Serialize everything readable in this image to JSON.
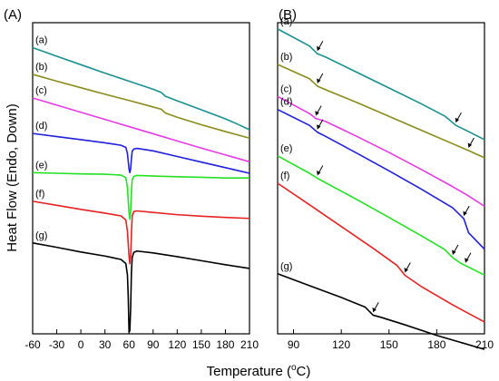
{
  "chart_data": [
    {
      "panel_label": "(A)",
      "type": "line",
      "xlim": [
        -60,
        210
      ],
      "ylim": [
        0,
        100
      ],
      "xticks": [
        -60,
        -30,
        0,
        30,
        60,
        90,
        120,
        150,
        180,
        210
      ],
      "ylabel": "Heat Flow (Endo, Down)",
      "yticks_shown": false,
      "series": [
        {
          "label": "(a)",
          "color": "#1a8f8f",
          "x": [
            -60,
            -30,
            0,
            30,
            60,
            90,
            100,
            105,
            120,
            150,
            180,
            195,
            210
          ],
          "y": [
            92.0,
            89.2,
            86.5,
            83.8,
            81.2,
            78.6,
            77.6,
            76.4,
            74.9,
            72.0,
            69.1,
            67.4,
            65.6
          ]
        },
        {
          "label": "(b)",
          "color": "#8a8a1c",
          "x": [
            -60,
            -30,
            0,
            30,
            60,
            90,
            100,
            105,
            120,
            150,
            180,
            210
          ],
          "y": [
            83.4,
            81.2,
            79.1,
            77.0,
            75.0,
            72.9,
            72.2,
            71.0,
            69.6,
            67.2,
            65.0,
            62.9
          ]
        },
        {
          "label": "(c)",
          "color": "#e43be4",
          "x": [
            -60,
            -30,
            0,
            30,
            60,
            90,
            120,
            150,
            180,
            210
          ],
          "y": [
            75.8,
            73.5,
            71.2,
            68.9,
            66.6,
            64.3,
            62.0,
            59.7,
            57.5,
            55.3
          ]
        },
        {
          "label": "(d)",
          "color": "#1f1fdc",
          "x": [
            -60,
            -30,
            0,
            30,
            50,
            56,
            58,
            60,
            61,
            62,
            63,
            64,
            66,
            70,
            90,
            120,
            150,
            180,
            210
          ],
          "y": [
            64.4,
            63.4,
            62.4,
            61.4,
            60.6,
            59.9,
            58.0,
            53.0,
            51.8,
            53.0,
            56.5,
            58.7,
            59.4,
            59.6,
            58.8,
            57.0,
            55.2,
            53.4,
            51.6
          ]
        },
        {
          "label": "(e)",
          "color": "#23e023",
          "x": [
            -60,
            -30,
            0,
            30,
            50,
            56,
            58,
            60,
            61,
            62,
            63,
            64,
            66,
            70,
            90,
            120,
            150,
            180,
            210
          ],
          "y": [
            51.8,
            51.6,
            51.4,
            51.3,
            51.0,
            50.2,
            47.0,
            39.0,
            36.8,
            39.5,
            46.0,
            49.6,
            50.6,
            50.9,
            50.7,
            50.5,
            50.3,
            50.1,
            50.1
          ]
        },
        {
          "label": "(f)",
          "color": "#e62121",
          "x": [
            -60,
            -30,
            0,
            30,
            50,
            56,
            58,
            60,
            61,
            62,
            63,
            64,
            66,
            70,
            90,
            120,
            150,
            180,
            210
          ],
          "y": [
            42.6,
            41.3,
            40.0,
            38.8,
            37.9,
            36.6,
            33.0,
            25.0,
            22.5,
            25.0,
            32.5,
            38.0,
            39.3,
            39.5,
            39.0,
            38.3,
            37.8,
            37.4,
            37.1
          ]
        },
        {
          "label": "(g)",
          "color": "#000000",
          "x": [
            -60,
            -30,
            0,
            30,
            50,
            56,
            58,
            59,
            60,
            61,
            62,
            63,
            64,
            66,
            70,
            90,
            120,
            150,
            180,
            210
          ],
          "y": [
            29.2,
            27.8,
            26.3,
            25.0,
            23.9,
            22.6,
            19.0,
            12.0,
            0.5,
            1.0,
            8.0,
            20.0,
            24.6,
            26.2,
            26.6,
            26.0,
            24.8,
            23.5,
            22.2,
            21.0
          ]
        }
      ]
    },
    {
      "panel_label": "(B)",
      "type": "line",
      "xlim": [
        80,
        210
      ],
      "ylim": [
        0,
        100
      ],
      "xticks": [
        90,
        120,
        150,
        180,
        210
      ],
      "yticks_shown": false,
      "series": [
        {
          "label": "(a)",
          "color": "#1a8f8f",
          "x": [
            80,
            100,
            105,
            110,
            130,
            150,
            170,
            185,
            192,
            200,
            210
          ],
          "y": [
            98.0,
            92.5,
            90.0,
            89.0,
            84.0,
            79.0,
            74.0,
            70.0,
            67.0,
            65.0,
            62.4
          ]
        },
        {
          "label": "(b)",
          "color": "#8a8a1c",
          "x": [
            80,
            100,
            105,
            110,
            130,
            150,
            170,
            190,
            200,
            210
          ],
          "y": [
            86.6,
            82.0,
            79.6,
            78.5,
            74.3,
            69.9,
            65.5,
            61.1,
            58.9,
            56.6
          ]
        },
        {
          "label": "(c)",
          "color": "#e43be4",
          "x": [
            80,
            100,
            104,
            110,
            130,
            150,
            170,
            190,
            200,
            210
          ],
          "y": [
            76.3,
            70.8,
            69.2,
            68.3,
            63.4,
            58.3,
            52.9,
            47.3,
            44.3,
            41.0
          ]
        },
        {
          "label": "(d)",
          "color": "#1f1fdc",
          "x": [
            80,
            100,
            105,
            110,
            130,
            150,
            170,
            190,
            197,
            200,
            210
          ],
          "y": [
            72.1,
            67.0,
            64.8,
            63.5,
            58.0,
            52.4,
            46.6,
            40.5,
            37.0,
            32.5,
            27.2
          ]
        },
        {
          "label": "(e)",
          "color": "#23e023",
          "x": [
            80,
            100,
            105,
            110,
            130,
            150,
            170,
            185,
            190,
            195,
            210
          ],
          "y": [
            57.2,
            51.6,
            50.0,
            48.6,
            43.1,
            37.4,
            31.6,
            27.1,
            24.5,
            22.7,
            18.9
          ]
        },
        {
          "label": "(f)",
          "color": "#e62121",
          "x": [
            80,
            100,
            120,
            140,
            155,
            160,
            170,
            190,
            210
          ],
          "y": [
            48.4,
            41.5,
            34.5,
            27.5,
            22.0,
            18.8,
            15.3,
            9.3,
            3.8
          ]
        },
        {
          "label": "(g)",
          "color": "#000000",
          "x": [
            80,
            100,
            120,
            135,
            140,
            145,
            160,
            180,
            210
          ],
          "y": [
            19.3,
            15.5,
            11.7,
            8.6,
            6.0,
            5.3,
            2.9,
            -0.5,
            -5.0
          ]
        }
      ],
      "transition_arrows": [
        {
          "series": "(a)",
          "x": 105
        },
        {
          "series": "(a)",
          "x": 192
        },
        {
          "series": "(b)",
          "x": 105
        },
        {
          "series": "(b)",
          "x": 200
        },
        {
          "series": "(c)",
          "x": 104
        },
        {
          "series": "(d)",
          "x": 105
        },
        {
          "series": "(d)",
          "x": 197
        },
        {
          "series": "(e)",
          "x": 105
        },
        {
          "series": "(e)",
          "x": 198
        },
        {
          "series": "(e)",
          "x": 190
        },
        {
          "series": "(f)",
          "x": 160
        },
        {
          "series": "(g)",
          "x": 140
        }
      ]
    }
  ],
  "xlabel": "Temperature (°C)",
  "xlabel_parts": {
    "prefix": "Temperature (",
    "superscript": "o",
    "suffix": "C)"
  }
}
